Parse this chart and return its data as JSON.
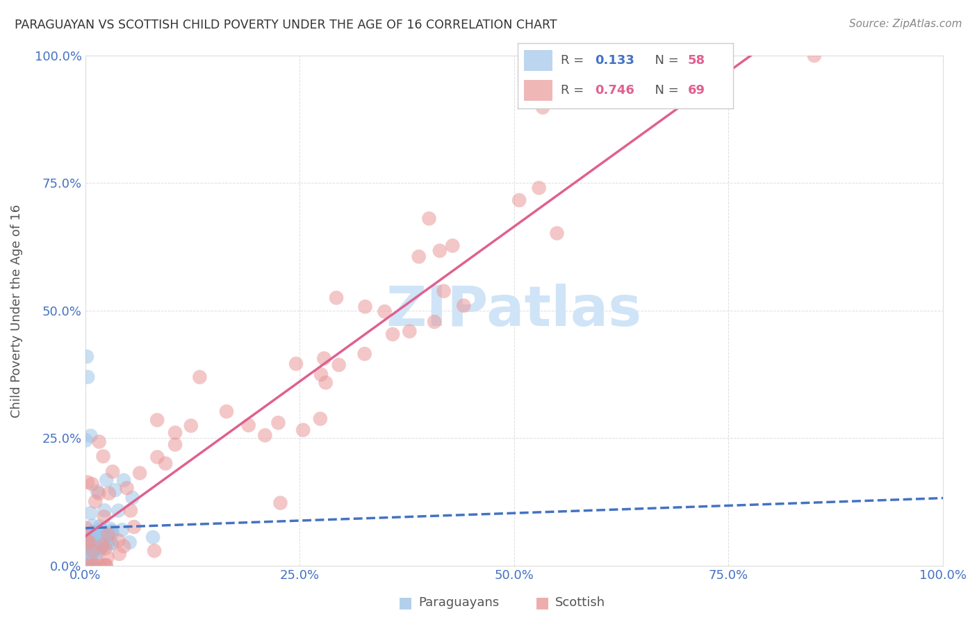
{
  "title": "PARAGUAYAN VS SCOTTISH CHILD POVERTY UNDER THE AGE OF 16 CORRELATION CHART",
  "source": "Source: ZipAtlas.com",
  "ylabel": "Child Poverty Under the Age of 16",
  "xlim": [
    0,
    1
  ],
  "ylim": [
    0,
    1
  ],
  "xticks": [
    0,
    0.25,
    0.5,
    0.75,
    1.0
  ],
  "yticks": [
    0,
    0.25,
    0.5,
    0.75,
    1.0
  ],
  "xticklabels": [
    "0.0%",
    "25.0%",
    "50.0%",
    "75.0%",
    "100.0%"
  ],
  "yticklabels": [
    "0.0%",
    "25.0%",
    "50.0%",
    "75.0%",
    "100.0%"
  ],
  "paraguayan_color": "#9fc5e8",
  "scottish_color": "#ea9999",
  "paraguayan_R": 0.133,
  "paraguayan_N": 58,
  "scottish_R": 0.746,
  "scottish_N": 69,
  "par_line_color": "#4472c4",
  "sco_line_color": "#e06090",
  "watermark_color": "#d0e4f7",
  "title_color": "#333333",
  "source_color": "#888888",
  "tick_color": "#4472c4",
  "ylabel_color": "#555555",
  "grid_color": "#dddddd",
  "legend_border_color": "#cccccc"
}
